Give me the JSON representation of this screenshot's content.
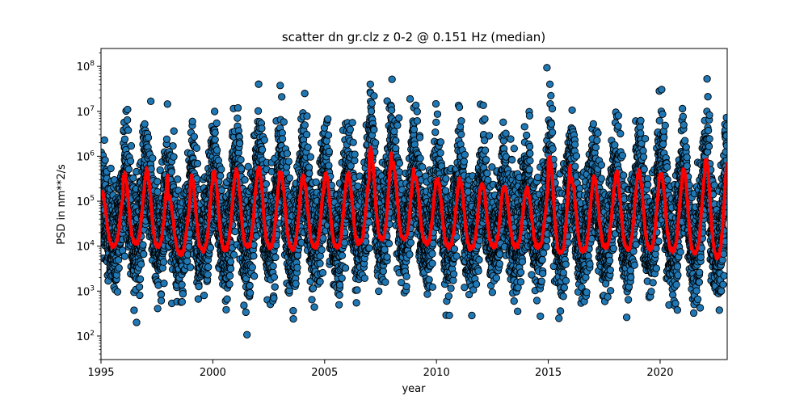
{
  "chart_data": {
    "type": "scatter",
    "title": "scatter dn gr.clz z 0-2 @ 0.151 Hz (median)",
    "xlabel": "year",
    "ylabel": "PSD in nm**2/s",
    "xlim": [
      1995,
      2023
    ],
    "ylim": [
      30,
      250000000
    ],
    "yscale": "log",
    "grid": false,
    "x_ticks": [
      1995,
      2000,
      2005,
      2010,
      2015,
      2020
    ],
    "x_tick_labels": [
      "1995",
      "2000",
      "2005",
      "2010",
      "2015",
      "2020"
    ],
    "y_ticks": [
      100,
      1000,
      10000,
      100000,
      1000000,
      10000000,
      100000000
    ],
    "y_tick_labels": [
      {
        "base": "10",
        "exp": "2"
      },
      {
        "base": "10",
        "exp": "3"
      },
      {
        "base": "10",
        "exp": "4"
      },
      {
        "base": "10",
        "exp": "5"
      },
      {
        "base": "10",
        "exp": "6"
      },
      {
        "base": "10",
        "exp": "7"
      },
      {
        "base": "10",
        "exp": "8"
      }
    ],
    "scatter_style": {
      "color": "#1f77b4",
      "edge": "#000000"
    },
    "median_style": {
      "color": "#ff0000"
    },
    "seasonal_model": {
      "start_year": 1995.0,
      "end_year": 2023.0,
      "peak_phase": 0.05,
      "winter_peaks_median": [
        150000,
        400000,
        500000,
        120000,
        350000,
        450000,
        500000,
        550000,
        400000,
        350000,
        400000,
        400000,
        1500000,
        700000,
        350000,
        300000,
        300000,
        250000,
        200000,
        200000,
        1000000,
        300000,
        350000,
        450000,
        500000,
        400000,
        500000,
        900000,
        350000
      ],
      "summer_troughs_median": [
        10000,
        12000,
        10000,
        7000,
        8000,
        9000,
        10000,
        10000,
        9000,
        10000,
        10000,
        12000,
        15000,
        15000,
        12000,
        10000,
        9000,
        10000,
        10000,
        10000,
        7000,
        8000,
        10000,
        9000,
        9000,
        8000,
        7000,
        6000,
        6000
      ],
      "scatter_spread_upper": 8,
      "scatter_spread_lower": 5,
      "points_per_year": 330
    }
  }
}
